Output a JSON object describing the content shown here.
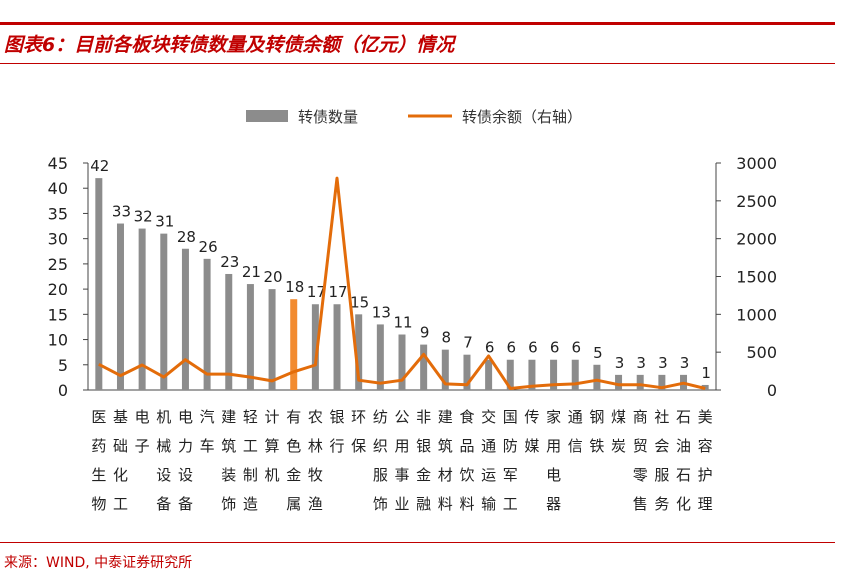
{
  "title": "图表6：目前各板块转债数量及转债余额（亿元）情况",
  "source": "来源：WIND, 中泰证券研究所",
  "colors": {
    "accent": "#c00000",
    "bar": "#8c8c8c",
    "bar_highlight": "#f28b30",
    "line": "#e36c0a"
  },
  "chart_data": {
    "type": "bar",
    "categories": [
      "医药生物",
      "基础化工",
      "电子",
      "机械设备",
      "电力设备",
      "汽车",
      "建筑装饰",
      "轻工制造",
      "计算机",
      "有色金属",
      "农林牧渔",
      "银行",
      "环保",
      "纺织服饰",
      "公用事业",
      "非银金融",
      "建筑材料",
      "食品饮料",
      "交通运输",
      "国防军工",
      "传媒",
      "家用电器",
      "通信",
      "钢铁",
      "煤炭",
      "商贸零售",
      "社会服务",
      "石油石化",
      "美容护理"
    ],
    "category_lines": [
      [
        "医",
        "药",
        "生",
        "物"
      ],
      [
        "基",
        "础",
        "化",
        "工"
      ],
      [
        "电",
        "子",
        "",
        ""
      ],
      [
        "机",
        "械",
        "设",
        "备"
      ],
      [
        "电",
        "力",
        "设",
        "备"
      ],
      [
        "汽",
        "车",
        "",
        ""
      ],
      [
        "建",
        "筑",
        "装",
        "饰"
      ],
      [
        "轻",
        "工",
        "制",
        "造"
      ],
      [
        "计",
        "算",
        "机",
        ""
      ],
      [
        "有",
        "色",
        "金",
        "属"
      ],
      [
        "农",
        "林",
        "牧",
        "渔"
      ],
      [
        "银",
        "行",
        "",
        ""
      ],
      [
        "环",
        "保",
        "",
        ""
      ],
      [
        "纺",
        "织",
        "服",
        "饰"
      ],
      [
        "公",
        "用",
        "事",
        "业"
      ],
      [
        "非",
        "银",
        "金",
        "融"
      ],
      [
        "建",
        "筑",
        "材",
        "料"
      ],
      [
        "食",
        "品",
        "饮",
        "料"
      ],
      [
        "交",
        "通",
        "运",
        "输"
      ],
      [
        "国",
        "防",
        "军",
        "工"
      ],
      [
        "传",
        "媒",
        "",
        ""
      ],
      [
        "家",
        "用",
        "电",
        "器"
      ],
      [
        "通",
        "信",
        "",
        ""
      ],
      [
        "钢",
        "铁",
        "",
        ""
      ],
      [
        "煤",
        "炭",
        "",
        ""
      ],
      [
        "商",
        "贸",
        "零",
        "售"
      ],
      [
        "社",
        "会",
        "服",
        "务"
      ],
      [
        "石",
        "油",
        "石",
        "化"
      ],
      [
        "美",
        "容",
        "护",
        "理"
      ]
    ],
    "series": [
      {
        "name": "转债数量",
        "axis": "left",
        "type": "bar",
        "values": [
          42,
          33,
          32,
          31,
          28,
          26,
          23,
          21,
          20,
          18,
          17,
          17,
          15,
          13,
          11,
          9,
          8,
          7,
          6,
          6,
          6,
          6,
          6,
          5,
          3,
          3,
          3,
          3,
          1
        ],
        "highlight_index": 9
      },
      {
        "name": "转债余额（右轴）",
        "axis": "right",
        "type": "line",
        "values": [
          340,
          190,
          330,
          170,
          400,
          210,
          210,
          170,
          120,
          240,
          330,
          2800,
          130,
          90,
          130,
          470,
          80,
          70,
          450,
          20,
          50,
          70,
          80,
          130,
          70,
          70,
          30,
          90,
          20
        ]
      }
    ],
    "y_left": {
      "range": [
        0,
        45
      ],
      "ticks": [
        "0",
        "5",
        "10",
        "15",
        "20",
        "25",
        "30",
        "35",
        "40",
        "45"
      ]
    },
    "y_right": {
      "range": [
        0,
        3000
      ],
      "ticks": [
        "0",
        "500",
        "1000",
        "1500",
        "2000",
        "2500",
        "3000"
      ]
    },
    "legend": {
      "position": "top",
      "items": [
        "转债数量",
        "转债余额（右轴）"
      ]
    },
    "grid": false
  }
}
